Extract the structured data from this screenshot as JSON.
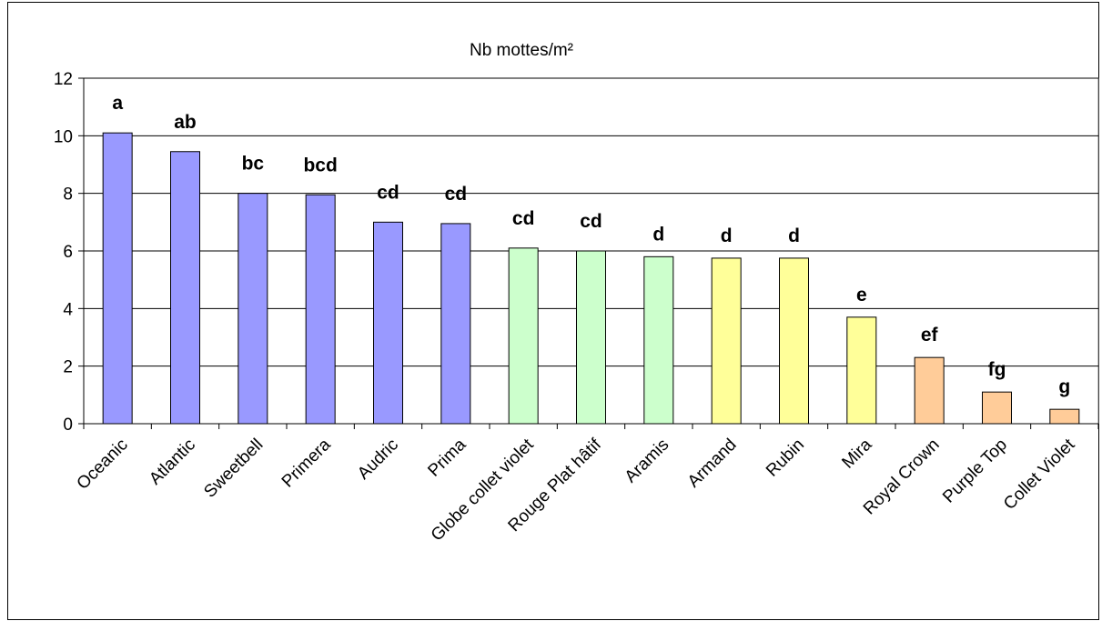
{
  "chart_data": {
    "type": "bar",
    "title": "Nb mottes/m²",
    "xlabel": "",
    "ylabel": "",
    "ylim": [
      0,
      12
    ],
    "yticks": [
      0,
      2,
      4,
      6,
      8,
      10,
      12
    ],
    "grid": true,
    "legend": "none",
    "categories": [
      "Oceanic",
      "Atlantic",
      "Sweetbell",
      "Primera",
      "Audric",
      "Prima",
      "Globe collet violet",
      "Rouge Plat hâtif",
      "Aramis",
      "Armand",
      "Rubin",
      "Mira",
      "Royal Crown",
      "Purple Top",
      "Collet Violet"
    ],
    "values": [
      10.1,
      9.45,
      8.0,
      7.95,
      7.0,
      6.95,
      6.1,
      6.0,
      5.8,
      5.75,
      5.75,
      3.7,
      2.3,
      1.1,
      0.5
    ],
    "significance_labels": [
      "a",
      "ab",
      "bc",
      "bcd",
      "cd",
      "cd",
      "cd",
      "cd",
      "d",
      "d",
      "d",
      "e",
      "ef",
      "fg",
      "g"
    ],
    "bar_colors": [
      "#9999ff",
      "#9999ff",
      "#9999ff",
      "#9999ff",
      "#9999ff",
      "#9999ff",
      "#ccffcc",
      "#ccffcc",
      "#ccffcc",
      "#ffff99",
      "#ffff99",
      "#ffff99",
      "#ffcc99",
      "#ffcc99",
      "#ffcc99"
    ],
    "plot_background": "#ffffff",
    "gridline_color": "#000000"
  }
}
